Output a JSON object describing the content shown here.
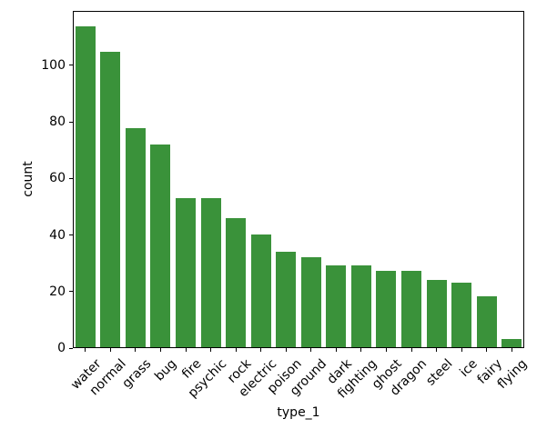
{
  "chart_data": {
    "type": "bar",
    "title": "",
    "xlabel": "type_1",
    "ylabel": "count",
    "categories": [
      "water",
      "normal",
      "grass",
      "bug",
      "fire",
      "psychic",
      "rock",
      "electric",
      "poison",
      "ground",
      "dark",
      "fighting",
      "ghost",
      "dragon",
      "steel",
      "ice",
      "fairy",
      "flying"
    ],
    "values": [
      114,
      105,
      78,
      72,
      53,
      53,
      46,
      40,
      34,
      32,
      29,
      29,
      27,
      27,
      24,
      23,
      18,
      3
    ],
    "yticks": [
      0,
      20,
      40,
      60,
      80,
      100
    ],
    "ylim": [
      0,
      119.2
    ],
    "grid": false,
    "legend": null,
    "bar_color": "#3a923a",
    "axis_color": "#000000",
    "background_color": "#ffffff",
    "tick_label_rotation": 45
  }
}
